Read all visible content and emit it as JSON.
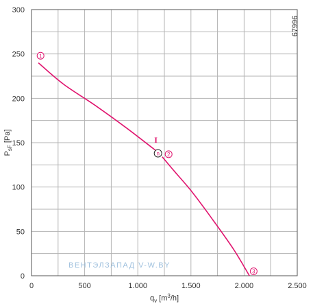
{
  "chart_data": {
    "type": "line",
    "title": "",
    "xlabel_parts": [
      "q",
      "v",
      " [m",
      "3",
      "/h]"
    ],
    "ylabel_parts": [
      "P",
      "sF",
      " [Pa]"
    ],
    "xlim": [
      0,
      2500
    ],
    "ylim": [
      0,
      300
    ],
    "x_ticks": [
      0,
      500,
      1000,
      1500,
      2000,
      2500
    ],
    "x_tick_labels": [
      "0",
      "500",
      "1.000",
      "1.500",
      "2.000",
      "2.500"
    ],
    "y_ticks": [
      0,
      50,
      100,
      150,
      200,
      250,
      300
    ],
    "y_tick_labels": [
      "0",
      "50",
      "100",
      "150",
      "200",
      "250",
      "300"
    ],
    "x_minor_step": 250,
    "y_minor_step": 25,
    "grid": true,
    "series": [
      {
        "name": "I",
        "color": "#e0156f",
        "x": [
          65,
          300,
          600,
          900,
          1150,
          1200
        ],
        "y": [
          240,
          216,
          192,
          166,
          143,
          139
        ]
      },
      {
        "name": "",
        "color": "#e0156f",
        "x": [
          1230,
          1350,
          1500,
          1700,
          1900,
          2050
        ],
        "y": [
          134,
          117,
          96,
          64,
          30,
          0
        ]
      }
    ],
    "markers": [
      {
        "label": "1",
        "x": 85,
        "y": 248,
        "kind": "pink-circle"
      },
      {
        "label": "2",
        "x": 1290,
        "y": 137,
        "kind": "pink-circle"
      },
      {
        "label": "3",
        "x": 2090,
        "y": 5,
        "kind": "pink-circle"
      },
      {
        "label": "n",
        "x": 1190,
        "y": 138,
        "kind": "black-circle"
      }
    ],
    "curve_label": {
      "text": "I",
      "x": 1155,
      "y": 153
    },
    "figure_id": "67996",
    "watermark": "ВЕНТЭЛЗАПАД V-W.BY"
  }
}
